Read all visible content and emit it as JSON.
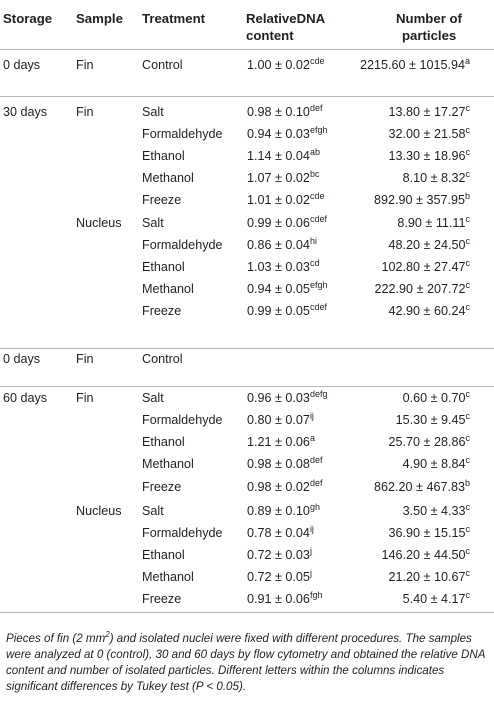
{
  "headers": {
    "storage": "Storage",
    "sample": "Sample",
    "treatment": "Treatment",
    "relative_dna_line1": "RelativeDNA",
    "relative_dna_line2": "content",
    "particles_line1": "Number of",
    "particles_line2": "particles"
  },
  "rows": [
    {
      "storage": "0 days",
      "sample": "Fin",
      "treatment": "Control",
      "dna": "1.00 ± 0.02",
      "dna_sup": "cde",
      "particles": "2215.60 ± 1015.94",
      "particles_sup": "a"
    },
    {
      "storage": "30 days",
      "sample": "Fin",
      "treatment": "Salt",
      "dna": "0.98 ± 0.10",
      "dna_sup": "def",
      "particles": "13.80 ± 17.27",
      "particles_sup": "c"
    },
    {
      "storage": "",
      "sample": "",
      "treatment": "Formaldehyde",
      "dna": "0.94 ± 0.03",
      "dna_sup": "efgh",
      "particles": "32.00 ± 21.58",
      "particles_sup": "c"
    },
    {
      "storage": "",
      "sample": "",
      "treatment": "Ethanol",
      "dna": "1.14 ± 0.04",
      "dna_sup": "ab",
      "particles": "13.30 ± 18.96",
      "particles_sup": "c"
    },
    {
      "storage": "",
      "sample": "",
      "treatment": "Methanol",
      "dna": "1.07 ± 0.02",
      "dna_sup": "bc",
      "particles": "8.10 ± 8.32",
      "particles_sup": "c"
    },
    {
      "storage": "",
      "sample": "",
      "treatment": "Freeze",
      "dna": "1.01 ± 0.02",
      "dna_sup": "cde",
      "particles": "892.90 ± 357.95",
      "particles_sup": "b"
    },
    {
      "storage": "",
      "sample": "Nucleus",
      "treatment": "Salt",
      "dna": "0.99 ± 0.06",
      "dna_sup": "cdef",
      "particles": "8.90 ± 11.11",
      "particles_sup": "c"
    },
    {
      "storage": "",
      "sample": "",
      "treatment": "Formaldehyde",
      "dna": "0.86 ± 0.04",
      "dna_sup": "hi",
      "particles": "48.20 ± 24.50",
      "particles_sup": "c"
    },
    {
      "storage": "",
      "sample": "",
      "treatment": "Ethanol",
      "dna": "1.03 ± 0.03",
      "dna_sup": "cd",
      "particles": "102.80 ± 27.47",
      "particles_sup": "c"
    },
    {
      "storage": "",
      "sample": "",
      "treatment": "Methanol",
      "dna": "0.94 ± 0.05",
      "dna_sup": "efgh",
      "particles": "222.90 ± 207.72",
      "particles_sup": "c"
    },
    {
      "storage": "",
      "sample": "",
      "treatment": "Freeze",
      "dna": "0.99 ± 0.05",
      "dna_sup": "cdef",
      "particles": "42.90 ± 60.24",
      "particles_sup": "c"
    },
    {
      "storage": "0 days",
      "sample": "Fin",
      "treatment": "Control",
      "dna": "",
      "dna_sup": "",
      "particles": "",
      "particles_sup": ""
    },
    {
      "storage": "60 days",
      "sample": "Fin",
      "treatment": "Salt",
      "dna": "0.96 ± 0.03",
      "dna_sup": "defg",
      "particles": "0.60 ± 0.70",
      "particles_sup": "c"
    },
    {
      "storage": "",
      "sample": "",
      "treatment": "Formaldehyde",
      "dna": "0.80 ± 0.07",
      "dna_sup": "ij",
      "particles": "15.30 ± 9.45",
      "particles_sup": "c"
    },
    {
      "storage": "",
      "sample": "",
      "treatment": "Ethanol",
      "dna": "1.21 ± 0.06",
      "dna_sup": "a",
      "particles": "25.70 ± 28.86",
      "particles_sup": "c"
    },
    {
      "storage": "",
      "sample": "",
      "treatment": "Methanol",
      "dna": "0.98 ± 0.08",
      "dna_sup": "def",
      "particles": "4.90 ± 8.84",
      "particles_sup": "c"
    },
    {
      "storage": "",
      "sample": "",
      "treatment": "Freeze",
      "dna": "0.98 ± 0.02",
      "dna_sup": "def",
      "particles": "862.20 ± 467.83",
      "particles_sup": "b"
    },
    {
      "storage": "",
      "sample": "Nucleus",
      "treatment": "Salt",
      "dna": "0.89 ± 0.10",
      "dna_sup": "gh",
      "particles": "3.50 ± 4.33",
      "particles_sup": "c"
    },
    {
      "storage": "",
      "sample": "",
      "treatment": "Formaldehyde",
      "dna": "0.78 ± 0.04",
      "dna_sup": "ij",
      "particles": "36.90 ± 15.15",
      "particles_sup": "c"
    },
    {
      "storage": "",
      "sample": "",
      "treatment": "Ethanol",
      "dna": "0.72 ± 0.03",
      "dna_sup": "j",
      "particles": "146.20 ± 44.50",
      "particles_sup": "c"
    },
    {
      "storage": "",
      "sample": "",
      "treatment": "Methanol",
      "dna": "0.72 ± 0.05",
      "dna_sup": "j",
      "particles": "21.20 ± 10.67",
      "particles_sup": "c"
    },
    {
      "storage": "",
      "sample": "",
      "treatment": "Freeze",
      "dna": "0.91 ± 0.06",
      "dna_sup": "fgh",
      "particles": "5.40 ± 4.17",
      "particles_sup": "c"
    }
  ],
  "caption": {
    "part1": "Pieces of fin (2 mm",
    "sup": "2",
    "part2": ") and isolated nuclei were fixed with different procedures. The samples were analyzed at 0 (control), 30 and 60 days by flow cytometry and obtained the relative DNA content and number of isolated particles. Different letters within the columns indicates significant differences by Tukey test (P < 0.05)."
  }
}
